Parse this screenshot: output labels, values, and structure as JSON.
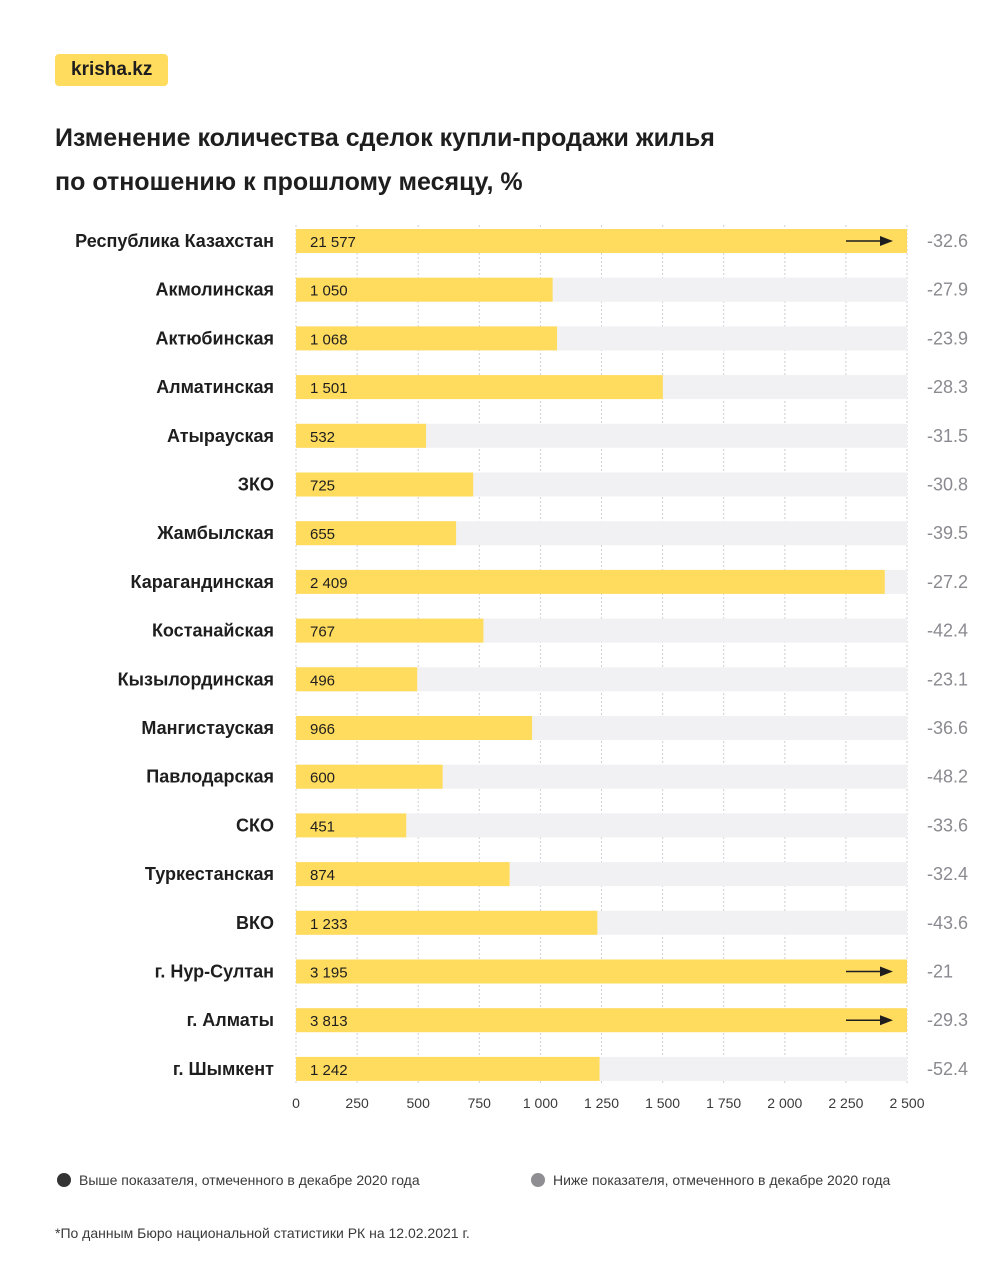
{
  "brand": "krisha.kz",
  "title_line1": "Изменение количества сделок купли-продажи жилья",
  "title_line2": "по отношению к прошлому месяцу, %",
  "colors": {
    "bar": "#ffdb5e",
    "track": "#f1f1f3",
    "label": "#1e1e1e",
    "change": "#8a8a90",
    "grid": "#cfcfd4",
    "legend_above": "#333333",
    "legend_below": "#8e8e93"
  },
  "legend": {
    "above_label": "Выше показателя, отмеченного в декабре 2020 года",
    "below_label": "Ниже показателя, отмеченного в декабре 2020 года"
  },
  "footnote": "*По данным Бюро национальной статистики РК на 12.02.2021 г.",
  "chart_data": {
    "type": "bar",
    "orientation": "horizontal",
    "title": "Изменение количества сделок купли-продажи жилья по отношению к прошлому месяцу, %",
    "xlabel": "",
    "ylabel": "",
    "xlim": [
      0,
      2500
    ],
    "xticks": [
      0,
      250,
      500,
      750,
      1000,
      1250,
      1500,
      1750,
      2000,
      2250,
      2500
    ],
    "xtick_labels": [
      "0",
      "250",
      "500",
      "750",
      "1 000",
      "1 250",
      "1 500",
      "1 750",
      "2 000",
      "2 250",
      "2 500"
    ],
    "grid": "vertical dashed",
    "categories": [
      "Республика Казахстан",
      "Акмолинская",
      "Актюбинская",
      "Алматинская",
      "Атырауская",
      "ЗКО",
      "Жамбылская",
      "Карагандинская",
      "Костанайская",
      "Кызылординская",
      "Мангистауская",
      "Павлодарская",
      "СКО",
      "Туркестанская",
      "ВКО",
      "г. Нур-Султан",
      "г. Алматы",
      "г. Шымкент"
    ],
    "values": [
      21577,
      1050,
      1068,
      1501,
      532,
      725,
      655,
      2409,
      767,
      496,
      966,
      600,
      451,
      874,
      1233,
      3195,
      3813,
      1242
    ],
    "value_labels": [
      "21 577",
      "1 050",
      "1 068",
      "1 501",
      "532",
      "725",
      "655",
      "2 409",
      "767",
      "496",
      "966",
      "600",
      "451",
      "874",
      "1 233",
      "3 195",
      "3 813",
      "1 242"
    ],
    "overflow": [
      true,
      false,
      false,
      false,
      false,
      false,
      false,
      false,
      false,
      false,
      false,
      false,
      false,
      false,
      false,
      true,
      true,
      false
    ],
    "change_pct": [
      -32.6,
      -27.9,
      -23.9,
      -28.3,
      -31.5,
      -30.8,
      -39.5,
      -27.2,
      -42.4,
      -23.1,
      -36.6,
      -48.2,
      -33.6,
      -32.4,
      -43.6,
      -21,
      -29.3,
      -52.4
    ],
    "change_labels": [
      "-32.6",
      "-27.9",
      "-23.9",
      "-28.3",
      "-31.5",
      "-30.8",
      "-39.5",
      "-27.2",
      "-42.4",
      "-23.1",
      "-36.6",
      "-48.2",
      "-33.6",
      "-32.4",
      "-43.6",
      "-21",
      "-29.3",
      "-52.4"
    ],
    "change_status": [
      "below",
      "below",
      "below",
      "below",
      "below",
      "below",
      "below",
      "below",
      "below",
      "below",
      "below",
      "below",
      "below",
      "below",
      "below",
      "below",
      "below",
      "below"
    ],
    "legend": "bottom"
  }
}
